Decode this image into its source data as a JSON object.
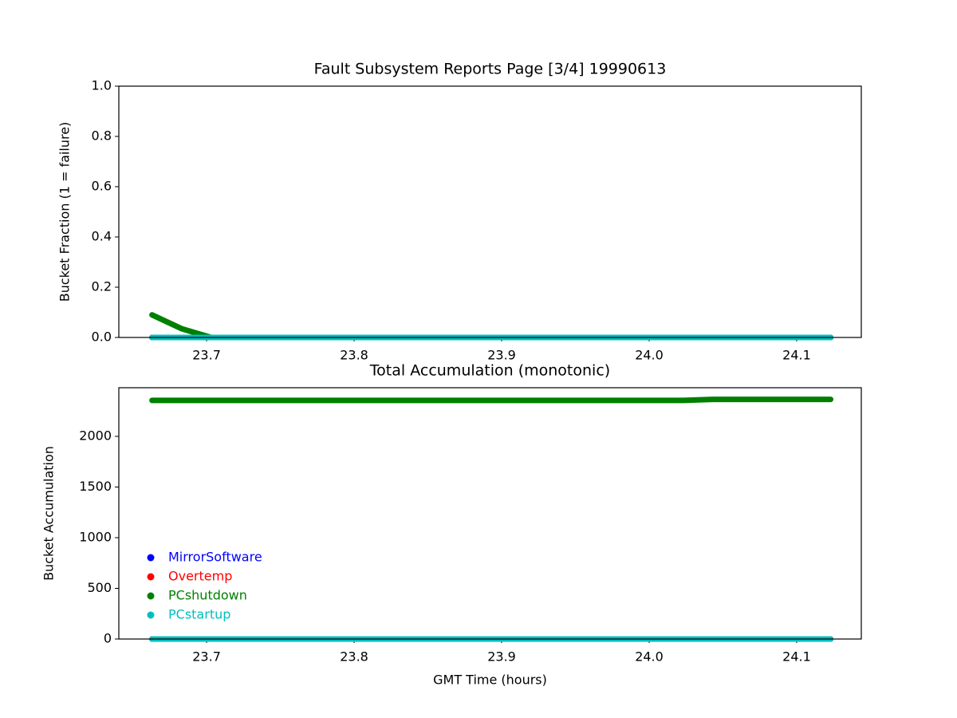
{
  "chart_data": [
    {
      "type": "line",
      "title": "Fault Subsystem Reports Page [3/4] 19990613",
      "y_label": "Bucket Fraction (1 = failure)",
      "x": [
        23.663,
        23.683,
        23.703,
        23.723,
        23.743,
        23.763,
        23.783,
        23.803,
        23.823,
        23.843,
        23.863,
        23.883,
        23.903,
        23.923,
        23.943,
        23.963,
        23.983,
        24.003,
        24.023,
        24.043,
        24.063,
        24.083,
        24.103,
        24.123
      ],
      "series": [
        {
          "name": "MirrorSoftware",
          "color": "#0000ff",
          "values": [
            0,
            0,
            0,
            0,
            0,
            0,
            0,
            0,
            0,
            0,
            0,
            0,
            0,
            0,
            0,
            0,
            0,
            0,
            0,
            0,
            0,
            0,
            0,
            0
          ]
        },
        {
          "name": "Overtemp",
          "color": "#ff0000",
          "values": [
            0,
            0,
            0,
            0,
            0,
            0,
            0,
            0,
            0,
            0,
            0,
            0,
            0,
            0,
            0,
            0,
            0,
            0,
            0,
            0,
            0,
            0,
            0,
            0
          ]
        },
        {
          "name": "PCshutdown",
          "color": "#008000",
          "values": [
            0.09,
            0.035,
            0,
            0,
            0,
            0,
            0,
            0,
            0,
            0,
            0,
            0,
            0,
            0,
            0,
            0,
            0,
            0,
            0,
            0,
            0,
            0,
            0,
            0
          ]
        },
        {
          "name": "PCstartup",
          "color": "#00bfbf",
          "values": [
            0,
            0,
            0,
            0,
            0,
            0,
            0,
            0,
            0,
            0,
            0,
            0,
            0,
            0,
            0,
            0,
            0,
            0,
            0,
            0,
            0,
            0,
            0,
            0
          ]
        }
      ],
      "xlim": [
        23.6405,
        24.1438
      ],
      "xticks": [
        23.7,
        23.8,
        23.9,
        {
          "value": 24,
          "label": "24.0"
        },
        24.1
      ],
      "ylim": [
        0,
        1
      ],
      "yticks": [
        {
          "value": 0,
          "label": "0.0"
        },
        0.2,
        0.4,
        0.6,
        0.8,
        {
          "value": 1,
          "label": "1.0"
        }
      ]
    },
    {
      "type": "line",
      "title": "Total Accumulation (monotonic)",
      "x_label": "GMT Time (hours)",
      "y_label": "Bucket Accumulation",
      "x": [
        23.663,
        23.683,
        23.703,
        23.723,
        23.743,
        23.763,
        23.783,
        23.803,
        23.823,
        23.843,
        23.863,
        23.883,
        23.903,
        23.923,
        23.943,
        23.963,
        23.983,
        24.003,
        24.023,
        24.043,
        24.063,
        24.083,
        24.103,
        24.123
      ],
      "series": [
        {
          "name": "MirrorSoftware",
          "color": "#0000ff",
          "values": [
            0,
            0,
            0,
            0,
            0,
            0,
            0,
            0,
            0,
            0,
            0,
            0,
            0,
            0,
            0,
            0,
            0,
            0,
            0,
            0,
            0,
            0,
            0,
            0
          ]
        },
        {
          "name": "Overtemp",
          "color": "#ff0000",
          "values": [
            0,
            0,
            0,
            0,
            0,
            0,
            0,
            0,
            0,
            0,
            0,
            0,
            0,
            0,
            0,
            0,
            0,
            0,
            0,
            0,
            0,
            0,
            0,
            0
          ]
        },
        {
          "name": "PCshutdown",
          "color": "#008000",
          "values": [
            2355,
            2355,
            2355,
            2355,
            2355,
            2355,
            2355,
            2355,
            2355,
            2355,
            2355,
            2355,
            2355,
            2355,
            2355,
            2355,
            2355,
            2355,
            2355,
            2365,
            2365,
            2365,
            2365,
            2365
          ]
        },
        {
          "name": "PCstartup",
          "color": "#00bfbf",
          "values": [
            0,
            0,
            0,
            0,
            0,
            0,
            0,
            0,
            0,
            0,
            0,
            0,
            0,
            0,
            0,
            0,
            0,
            0,
            0,
            0,
            0,
            0,
            0,
            0
          ]
        }
      ],
      "xlim": [
        23.6405,
        24.1438
      ],
      "xticks": [
        23.7,
        23.8,
        23.9,
        {
          "value": 24,
          "label": "24.0"
        },
        24.1
      ],
      "ylim": [
        0,
        2480
      ],
      "yticks": [
        0,
        500,
        1000,
        1500,
        2000
      ],
      "legend": "lower left"
    }
  ]
}
